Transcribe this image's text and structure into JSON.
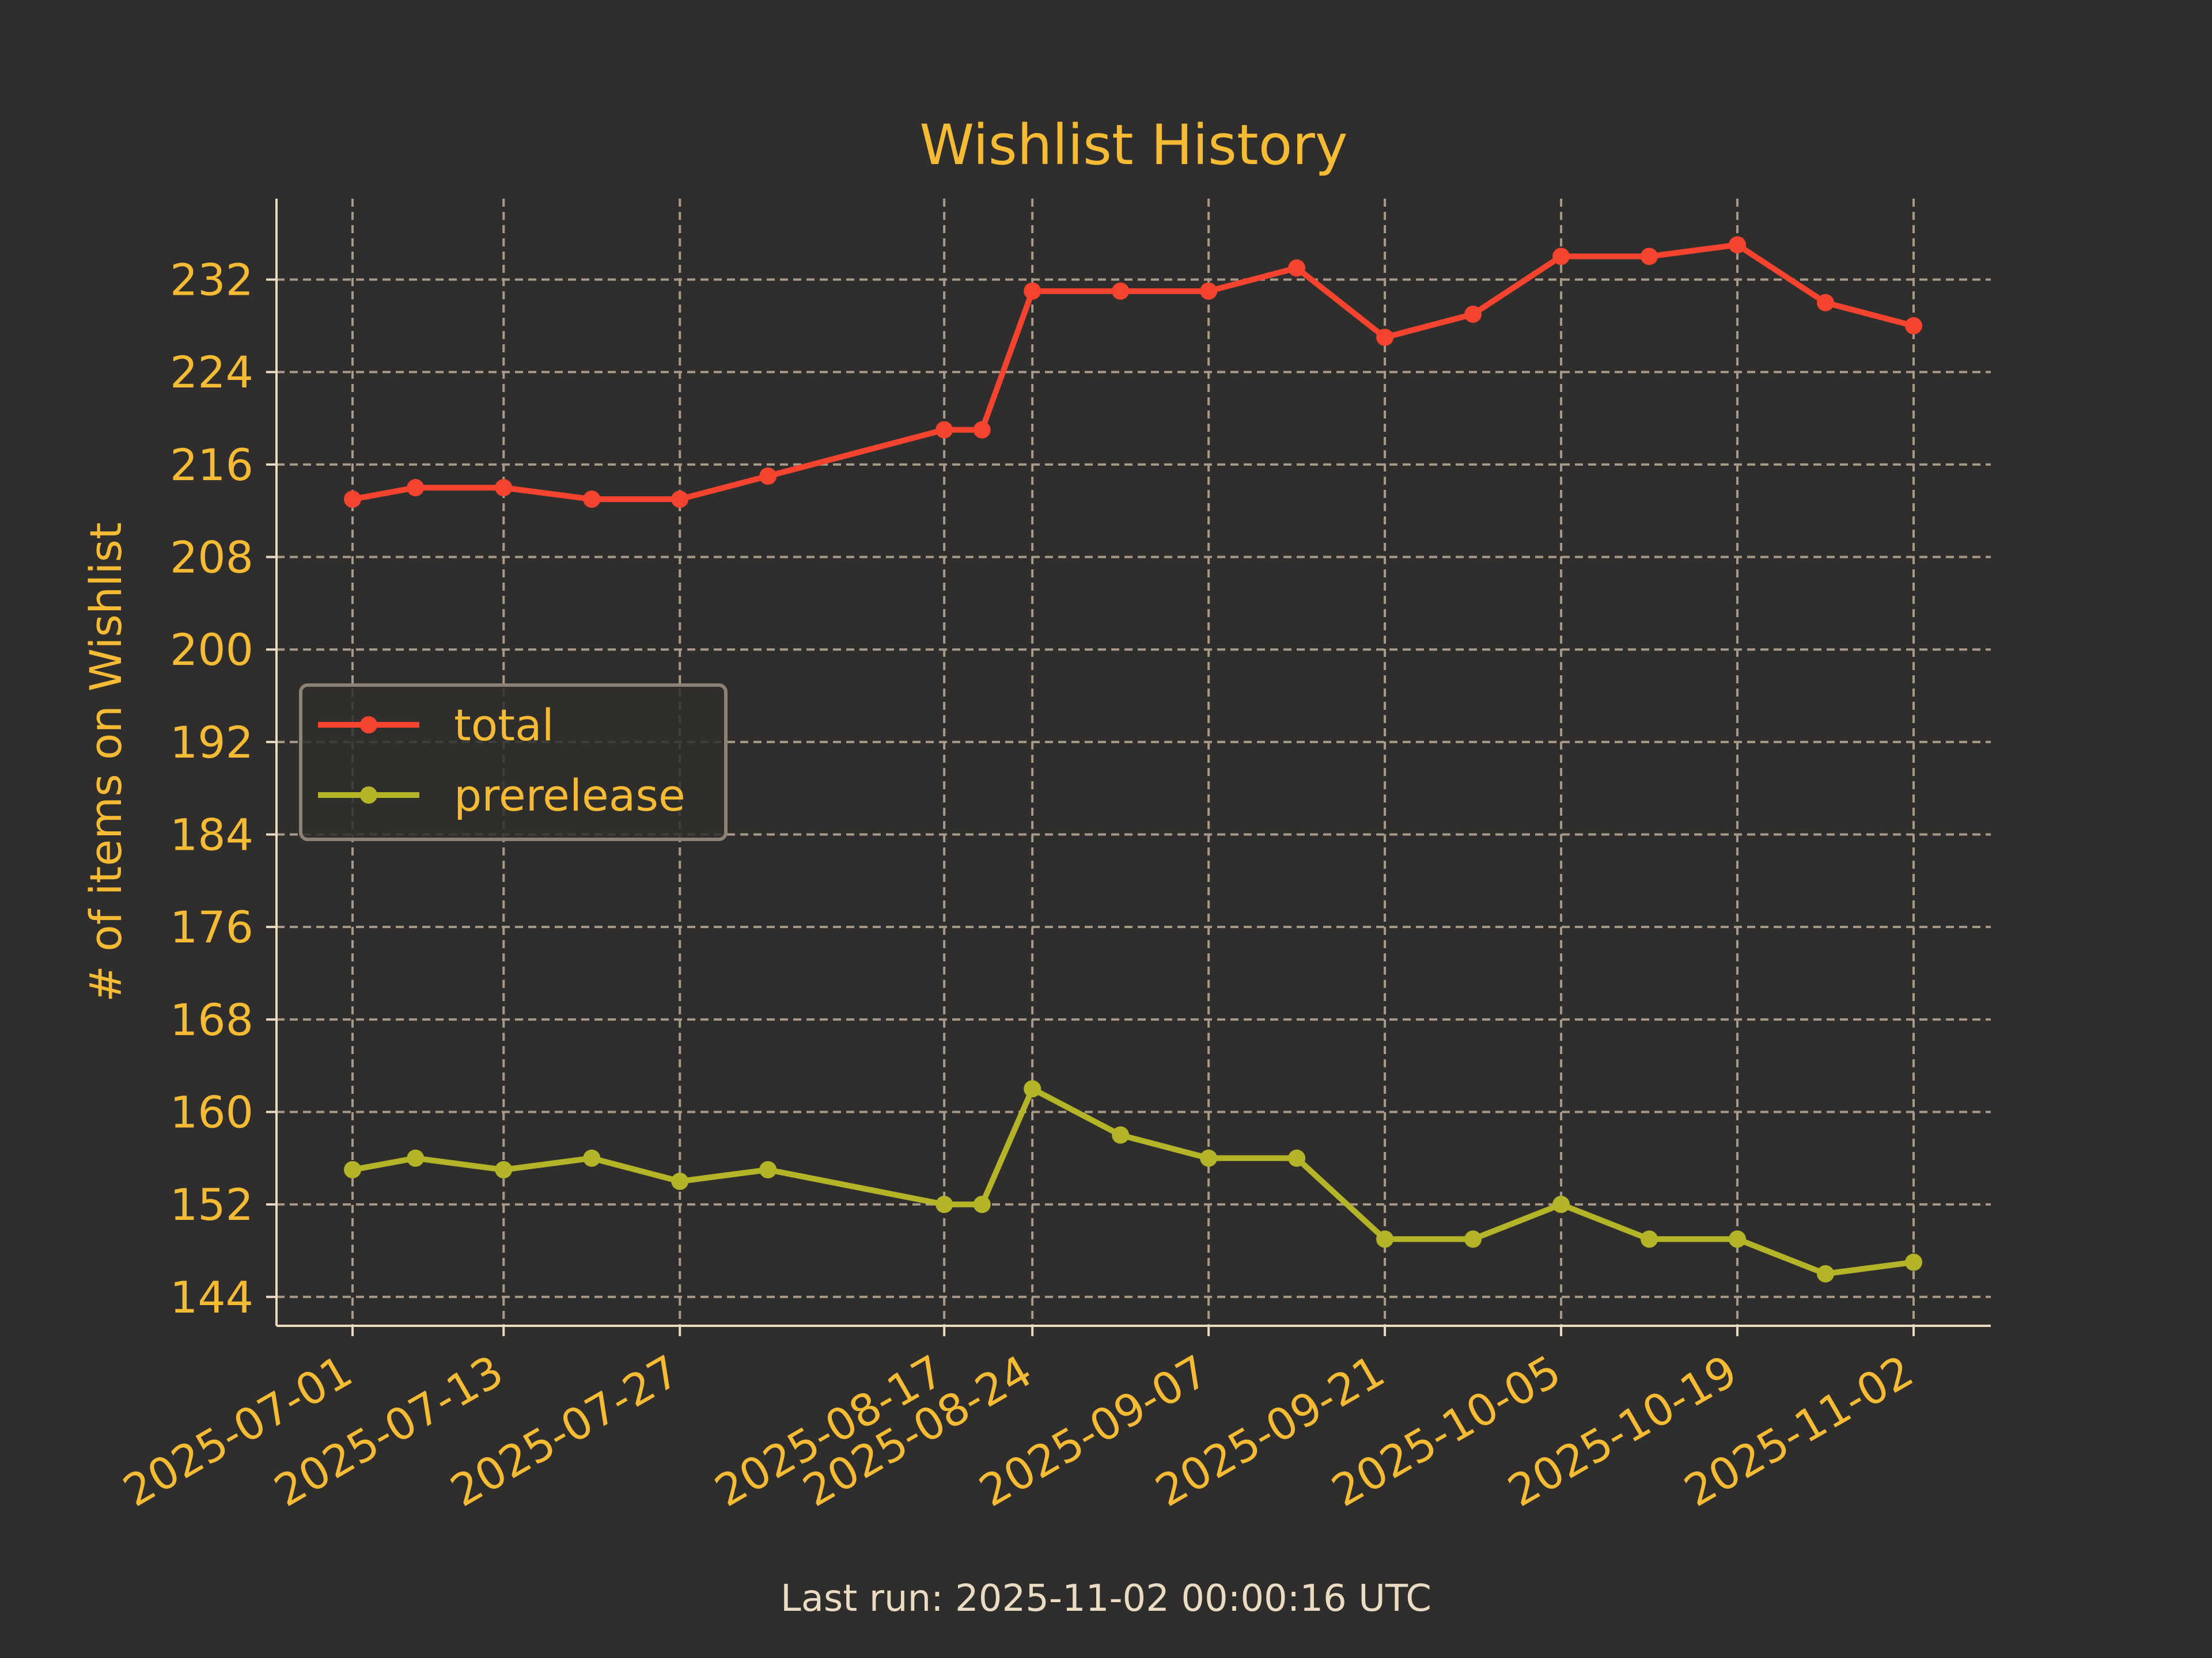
{
  "chart_data": {
    "type": "line",
    "title": "Wishlist History",
    "ylabel": "# of items on Wishlist",
    "xlabel": "",
    "x": [
      "2025-07-01",
      "2025-07-06",
      "2025-07-13",
      "2025-07-20",
      "2025-07-27",
      "2025-08-03",
      "2025-08-17",
      "2025-08-20",
      "2025-08-24",
      "2025-08-31",
      "2025-09-07",
      "2025-09-14",
      "2025-09-21",
      "2025-09-28",
      "2025-10-05",
      "2025-10-12",
      "2025-10-19",
      "2025-10-26",
      "2025-11-02"
    ],
    "xticks": [
      "2025-07-01",
      "2025-07-13",
      "2025-07-27",
      "2025-08-17",
      "2025-08-24",
      "2025-09-07",
      "2025-09-21",
      "2025-10-05",
      "2025-10-19",
      "2025-11-02"
    ],
    "yticks": [
      144,
      152,
      160,
      168,
      176,
      184,
      192,
      200,
      208,
      216,
      224,
      232
    ],
    "ylim": [
      141.5,
      239
    ],
    "grid": true,
    "legend_position": "center-left",
    "series": [
      {
        "name": "total",
        "color": "#f4432f",
        "values": [
          213,
          214,
          214,
          213,
          213,
          215,
          219,
          219,
          231,
          231,
          231,
          233,
          227,
          229,
          234,
          234,
          235,
          230,
          228
        ]
      },
      {
        "name": "prerelease",
        "color": "#b4b429",
        "values": [
          155,
          156,
          155,
          156,
          154,
          155,
          152,
          152,
          162,
          158,
          156,
          156,
          149,
          149,
          152,
          149,
          149,
          146,
          147
        ]
      }
    ]
  },
  "footer": {
    "text": "Last run: 2025-11-02 00:00:16 UTC"
  },
  "colors": {
    "background": "#2f2e2c",
    "text": "#f5bb35",
    "grid": "#a89a88",
    "axis": "#e9dcc2"
  }
}
